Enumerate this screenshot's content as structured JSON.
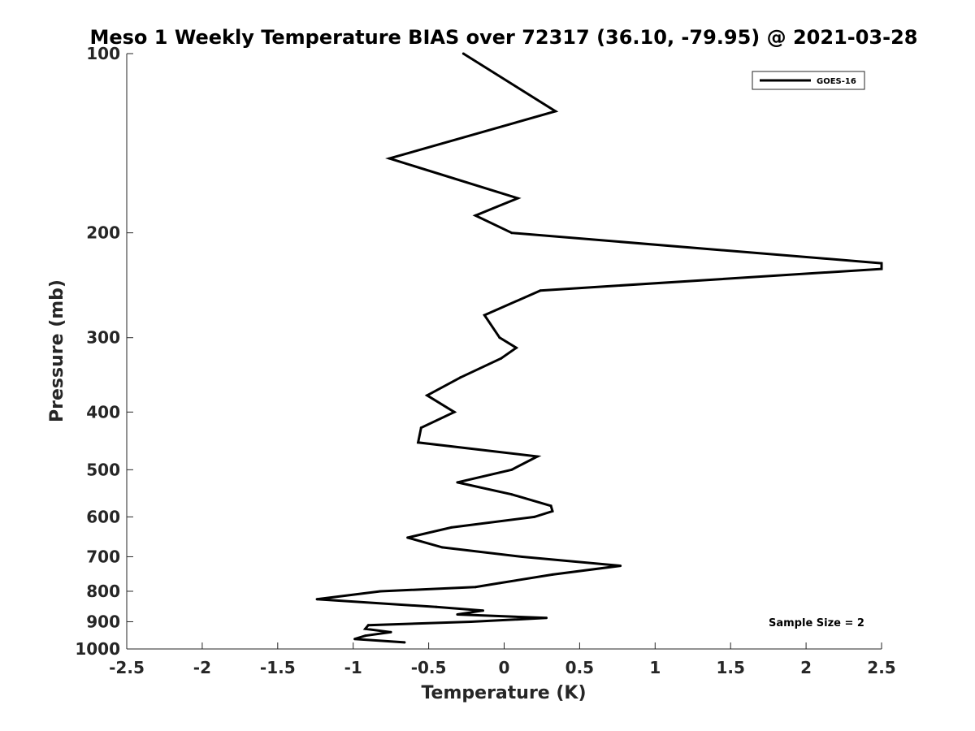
{
  "chart_data": {
    "type": "line",
    "title": "Meso 1 Weekly Temperature BIAS over 72317 (36.10, -79.95) @ 2021-03-28",
    "xlabel": "Temperature (K)",
    "ylabel": "Pressure (mb)",
    "xlim": [
      -2.5,
      2.5
    ],
    "ylim": [
      100,
      1000
    ],
    "y_scale": "log",
    "y_reversed": true,
    "x_ticks": [
      "-2.5",
      "-2",
      "-1.5",
      "-1",
      "-0.5",
      "0",
      "0.5",
      "1",
      "1.5",
      "2",
      "2.5"
    ],
    "y_ticks": [
      "100",
      "200",
      "300",
      "400",
      "500",
      "600",
      "700",
      "800",
      "900",
      "1000"
    ],
    "grid": false,
    "legend_position": "top-right",
    "annotation": "Sample Size = 2",
    "series": [
      {
        "name": "GOES-16",
        "color": "#000000",
        "points": [
          {
            "x": -0.27,
            "p": 100
          },
          {
            "x": 0.34,
            "p": 125
          },
          {
            "x": -0.76,
            "p": 150
          },
          {
            "x": 0.09,
            "p": 175
          },
          {
            "x": -0.19,
            "p": 187
          },
          {
            "x": 0.05,
            "p": 200
          },
          {
            "x": 2.5,
            "p": 225
          },
          {
            "x": 2.5,
            "p": 230
          },
          {
            "x": 0.24,
            "p": 250
          },
          {
            "x": -0.13,
            "p": 275
          },
          {
            "x": -0.03,
            "p": 300
          },
          {
            "x": 0.08,
            "p": 312
          },
          {
            "x": -0.02,
            "p": 325
          },
          {
            "x": -0.29,
            "p": 350
          },
          {
            "x": -0.51,
            "p": 375
          },
          {
            "x": -0.33,
            "p": 400
          },
          {
            "x": -0.55,
            "p": 425
          },
          {
            "x": -0.57,
            "p": 450
          },
          {
            "x": 0.22,
            "p": 475
          },
          {
            "x": 0.05,
            "p": 500
          },
          {
            "x": -0.31,
            "p": 525
          },
          {
            "x": 0.05,
            "p": 550
          },
          {
            "x": 0.31,
            "p": 575
          },
          {
            "x": 0.32,
            "p": 587
          },
          {
            "x": 0.2,
            "p": 600
          },
          {
            "x": -0.35,
            "p": 625
          },
          {
            "x": -0.64,
            "p": 650
          },
          {
            "x": -0.41,
            "p": 675
          },
          {
            "x": 0.12,
            "p": 700
          },
          {
            "x": 0.77,
            "p": 725
          },
          {
            "x": 0.32,
            "p": 750
          },
          {
            "x": -0.03,
            "p": 775
          },
          {
            "x": -0.19,
            "p": 787
          },
          {
            "x": -0.82,
            "p": 800
          },
          {
            "x": -1.24,
            "p": 825
          },
          {
            "x": -0.45,
            "p": 850
          },
          {
            "x": -0.14,
            "p": 862
          },
          {
            "x": -0.31,
            "p": 875
          },
          {
            "x": 0.28,
            "p": 887
          },
          {
            "x": -0.22,
            "p": 900
          },
          {
            "x": -0.9,
            "p": 912
          },
          {
            "x": -0.92,
            "p": 925
          },
          {
            "x": -0.75,
            "p": 937
          },
          {
            "x": -0.92,
            "p": 950
          },
          {
            "x": -0.99,
            "p": 962
          },
          {
            "x": -0.66,
            "p": 975
          }
        ]
      }
    ]
  }
}
